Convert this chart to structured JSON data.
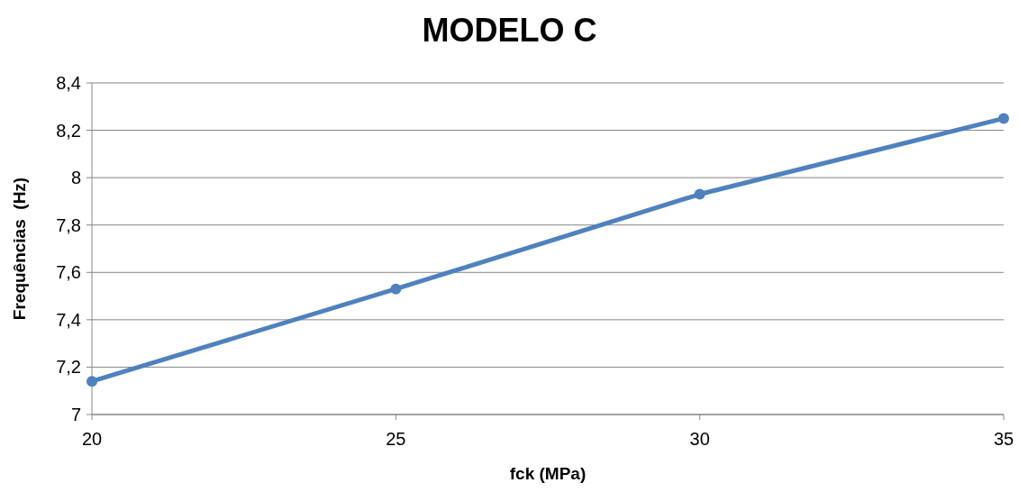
{
  "chart_data": {
    "type": "line",
    "title": "MODELO C",
    "xlabel": "fck (MPa)",
    "ylabel": "Frequências  (Hz)",
    "x": [
      20,
      25,
      30,
      35
    ],
    "series": [
      {
        "color": "#4f81bd",
        "values": [
          7.14,
          7.53,
          7.93,
          8.25
        ]
      }
    ],
    "xlim": [
      20,
      35
    ],
    "xticks": [
      20,
      25,
      30,
      35
    ],
    "ylim": [
      7,
      8.4
    ],
    "yticks": [
      7,
      {
        "value": 7.2,
        "label": "7,2"
      },
      {
        "value": 7.4,
        "label": "7,4"
      },
      {
        "value": 7.6,
        "label": "7,6"
      },
      {
        "value": 7.8,
        "label": "7,8"
      },
      8,
      {
        "value": 8.2,
        "label": "8,2"
      },
      {
        "value": 8.4,
        "label": "8,4"
      }
    ],
    "grid": "y",
    "marker": "circle",
    "line_style": "solid"
  }
}
